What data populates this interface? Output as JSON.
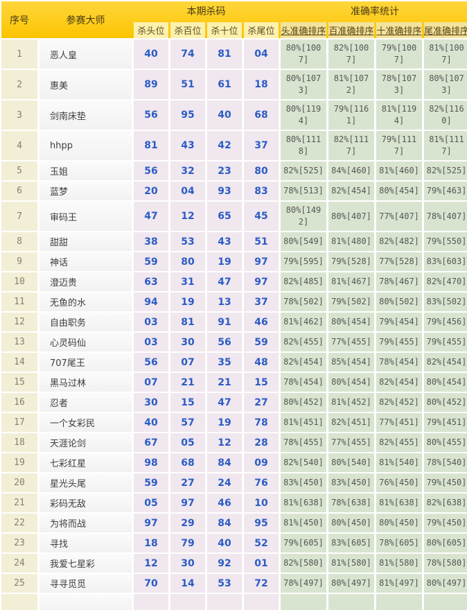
{
  "header": {
    "col_index": "序号",
    "col_master": "参赛大师",
    "group_kill": "本期杀码",
    "group_accuracy": "准确率统计",
    "kill_subcols": [
      "杀头位",
      "杀百位",
      "杀十位",
      "杀尾位"
    ],
    "accuracy_subcols": [
      "头准确排序",
      "百准确排序",
      "十准确排序",
      "尾准确排序"
    ]
  },
  "colors": {
    "header_gold": "#fcc400",
    "subheader_yellow": "#fdf1ae",
    "subheader_accuracy_yellow": "#f3e49b",
    "index_cell": "#f3efd7",
    "name_cell": "#f7f7f7",
    "kill_cell": "#f0e7ef",
    "accuracy_cell": "#d8e4cf",
    "kill_number_blue": "#2b5cc5"
  },
  "rows": [
    {
      "index": "1",
      "master": "恶人皇",
      "kills": [
        "40",
        "74",
        "81",
        "04"
      ],
      "accuracy": [
        "80%[1007]",
        "82%[1007]",
        "79%[1007]",
        "81%[1007]"
      ]
    },
    {
      "index": "2",
      "master": "惠美",
      "kills": [
        "89",
        "51",
        "61",
        "18"
      ],
      "accuracy": [
        "80%[1073]",
        "81%[1072]",
        "78%[1073]",
        "80%[1073]"
      ]
    },
    {
      "index": "3",
      "master": "剑南床垫",
      "kills": [
        "56",
        "95",
        "40",
        "68"
      ],
      "accuracy": [
        "80%[1194]",
        "79%[1161]",
        "81%[1194]",
        "82%[1160]"
      ]
    },
    {
      "index": "4",
      "master": "hhpp",
      "kills": [
        "81",
        "43",
        "42",
        "37"
      ],
      "accuracy": [
        "80%[1118]",
        "82%[1117]",
        "79%[1117]",
        "81%[1117]"
      ]
    },
    {
      "index": "5",
      "master": "玉姐",
      "kills": [
        "56",
        "32",
        "23",
        "80"
      ],
      "accuracy": [
        "82%[525]",
        "84%[460]",
        "81%[460]",
        "82%[525]"
      ]
    },
    {
      "index": "6",
      "master": "蓝梦",
      "kills": [
        "20",
        "04",
        "93",
        "83"
      ],
      "accuracy": [
        "78%[513]",
        "82%[454]",
        "80%[454]",
        "79%[463]"
      ]
    },
    {
      "index": "7",
      "master": "审码王",
      "kills": [
        "47",
        "12",
        "65",
        "45"
      ],
      "accuracy": [
        "80%[1492]",
        "80%[407]",
        "77%[407]",
        "78%[407]"
      ]
    },
    {
      "index": "8",
      "master": "甜甜",
      "kills": [
        "38",
        "53",
        "43",
        "51"
      ],
      "accuracy": [
        "80%[549]",
        "81%[480]",
        "82%[482]",
        "79%[550]"
      ]
    },
    {
      "index": "9",
      "master": "神话",
      "kills": [
        "59",
        "80",
        "19",
        "97"
      ],
      "accuracy": [
        "79%[595]",
        "79%[528]",
        "77%[528]",
        "83%[603]"
      ]
    },
    {
      "index": "10",
      "master": "澄迈贵",
      "kills": [
        "63",
        "31",
        "47",
        "97"
      ],
      "accuracy": [
        "82%[485]",
        "81%[467]",
        "78%[467]",
        "82%[470]"
      ]
    },
    {
      "index": "11",
      "master": "无鱼的水",
      "kills": [
        "94",
        "19",
        "13",
        "37"
      ],
      "accuracy": [
        "78%[502]",
        "79%[502]",
        "80%[502]",
        "83%[502]"
      ]
    },
    {
      "index": "12",
      "master": "自由职务",
      "kills": [
        "03",
        "81",
        "91",
        "46"
      ],
      "accuracy": [
        "81%[462]",
        "80%[454]",
        "79%[454]",
        "79%[456]"
      ]
    },
    {
      "index": "13",
      "master": "心灵码仙",
      "kills": [
        "03",
        "30",
        "56",
        "59"
      ],
      "accuracy": [
        "82%[455]",
        "77%[455]",
        "79%[455]",
        "79%[455]"
      ]
    },
    {
      "index": "14",
      "master": "707尾王",
      "kills": [
        "56",
        "07",
        "35",
        "48"
      ],
      "accuracy": [
        "82%[454]",
        "85%[454]",
        "78%[454]",
        "82%[454]"
      ]
    },
    {
      "index": "15",
      "master": "黑马过林",
      "kills": [
        "07",
        "21",
        "21",
        "15"
      ],
      "accuracy": [
        "78%[454]",
        "80%[454]",
        "82%[454]",
        "80%[454]"
      ]
    },
    {
      "index": "16",
      "master": "忍者",
      "kills": [
        "30",
        "15",
        "47",
        "27"
      ],
      "accuracy": [
        "80%[452]",
        "81%[452]",
        "82%[452]",
        "80%[452]"
      ]
    },
    {
      "index": "17",
      "master": "一个女彩民",
      "kills": [
        "40",
        "57",
        "19",
        "78"
      ],
      "accuracy": [
        "81%[451]",
        "82%[451]",
        "77%[451]",
        "79%[451]"
      ]
    },
    {
      "index": "18",
      "master": "天涯论剑",
      "kills": [
        "67",
        "05",
        "12",
        "28"
      ],
      "accuracy": [
        "78%[455]",
        "77%[455]",
        "82%[455]",
        "80%[455]"
      ]
    },
    {
      "index": "19",
      "master": "七彩红星",
      "kills": [
        "98",
        "68",
        "84",
        "09"
      ],
      "accuracy": [
        "82%[540]",
        "80%[540]",
        "81%[540]",
        "78%[540]"
      ]
    },
    {
      "index": "20",
      "master": "星光头尾",
      "kills": [
        "59",
        "27",
        "24",
        "76"
      ],
      "accuracy": [
        "83%[450]",
        "83%[450]",
        "76%[450]",
        "79%[450]"
      ]
    },
    {
      "index": "21",
      "master": "彩码无敌",
      "kills": [
        "05",
        "97",
        "46",
        "10"
      ],
      "accuracy": [
        "81%[638]",
        "78%[638]",
        "81%[638]",
        "82%[638]"
      ]
    },
    {
      "index": "22",
      "master": "为将而战",
      "kills": [
        "97",
        "29",
        "84",
        "95"
      ],
      "accuracy": [
        "81%[450]",
        "80%[450]",
        "80%[450]",
        "79%[450]"
      ]
    },
    {
      "index": "23",
      "master": "寻找",
      "kills": [
        "18",
        "79",
        "40",
        "52"
      ],
      "accuracy": [
        "79%[605]",
        "83%[605]",
        "78%[605]",
        "80%[605]"
      ]
    },
    {
      "index": "24",
      "master": "我爱七星彩",
      "kills": [
        "12",
        "30",
        "92",
        "01"
      ],
      "accuracy": [
        "82%[580]",
        "81%[580]",
        "81%[580]",
        "78%[580]"
      ]
    },
    {
      "index": "25",
      "master": "寻寻觅觅",
      "kills": [
        "70",
        "14",
        "53",
        "72"
      ],
      "accuracy": [
        "78%[497]",
        "80%[497]",
        "81%[497]",
        "80%[497]"
      ]
    }
  ]
}
